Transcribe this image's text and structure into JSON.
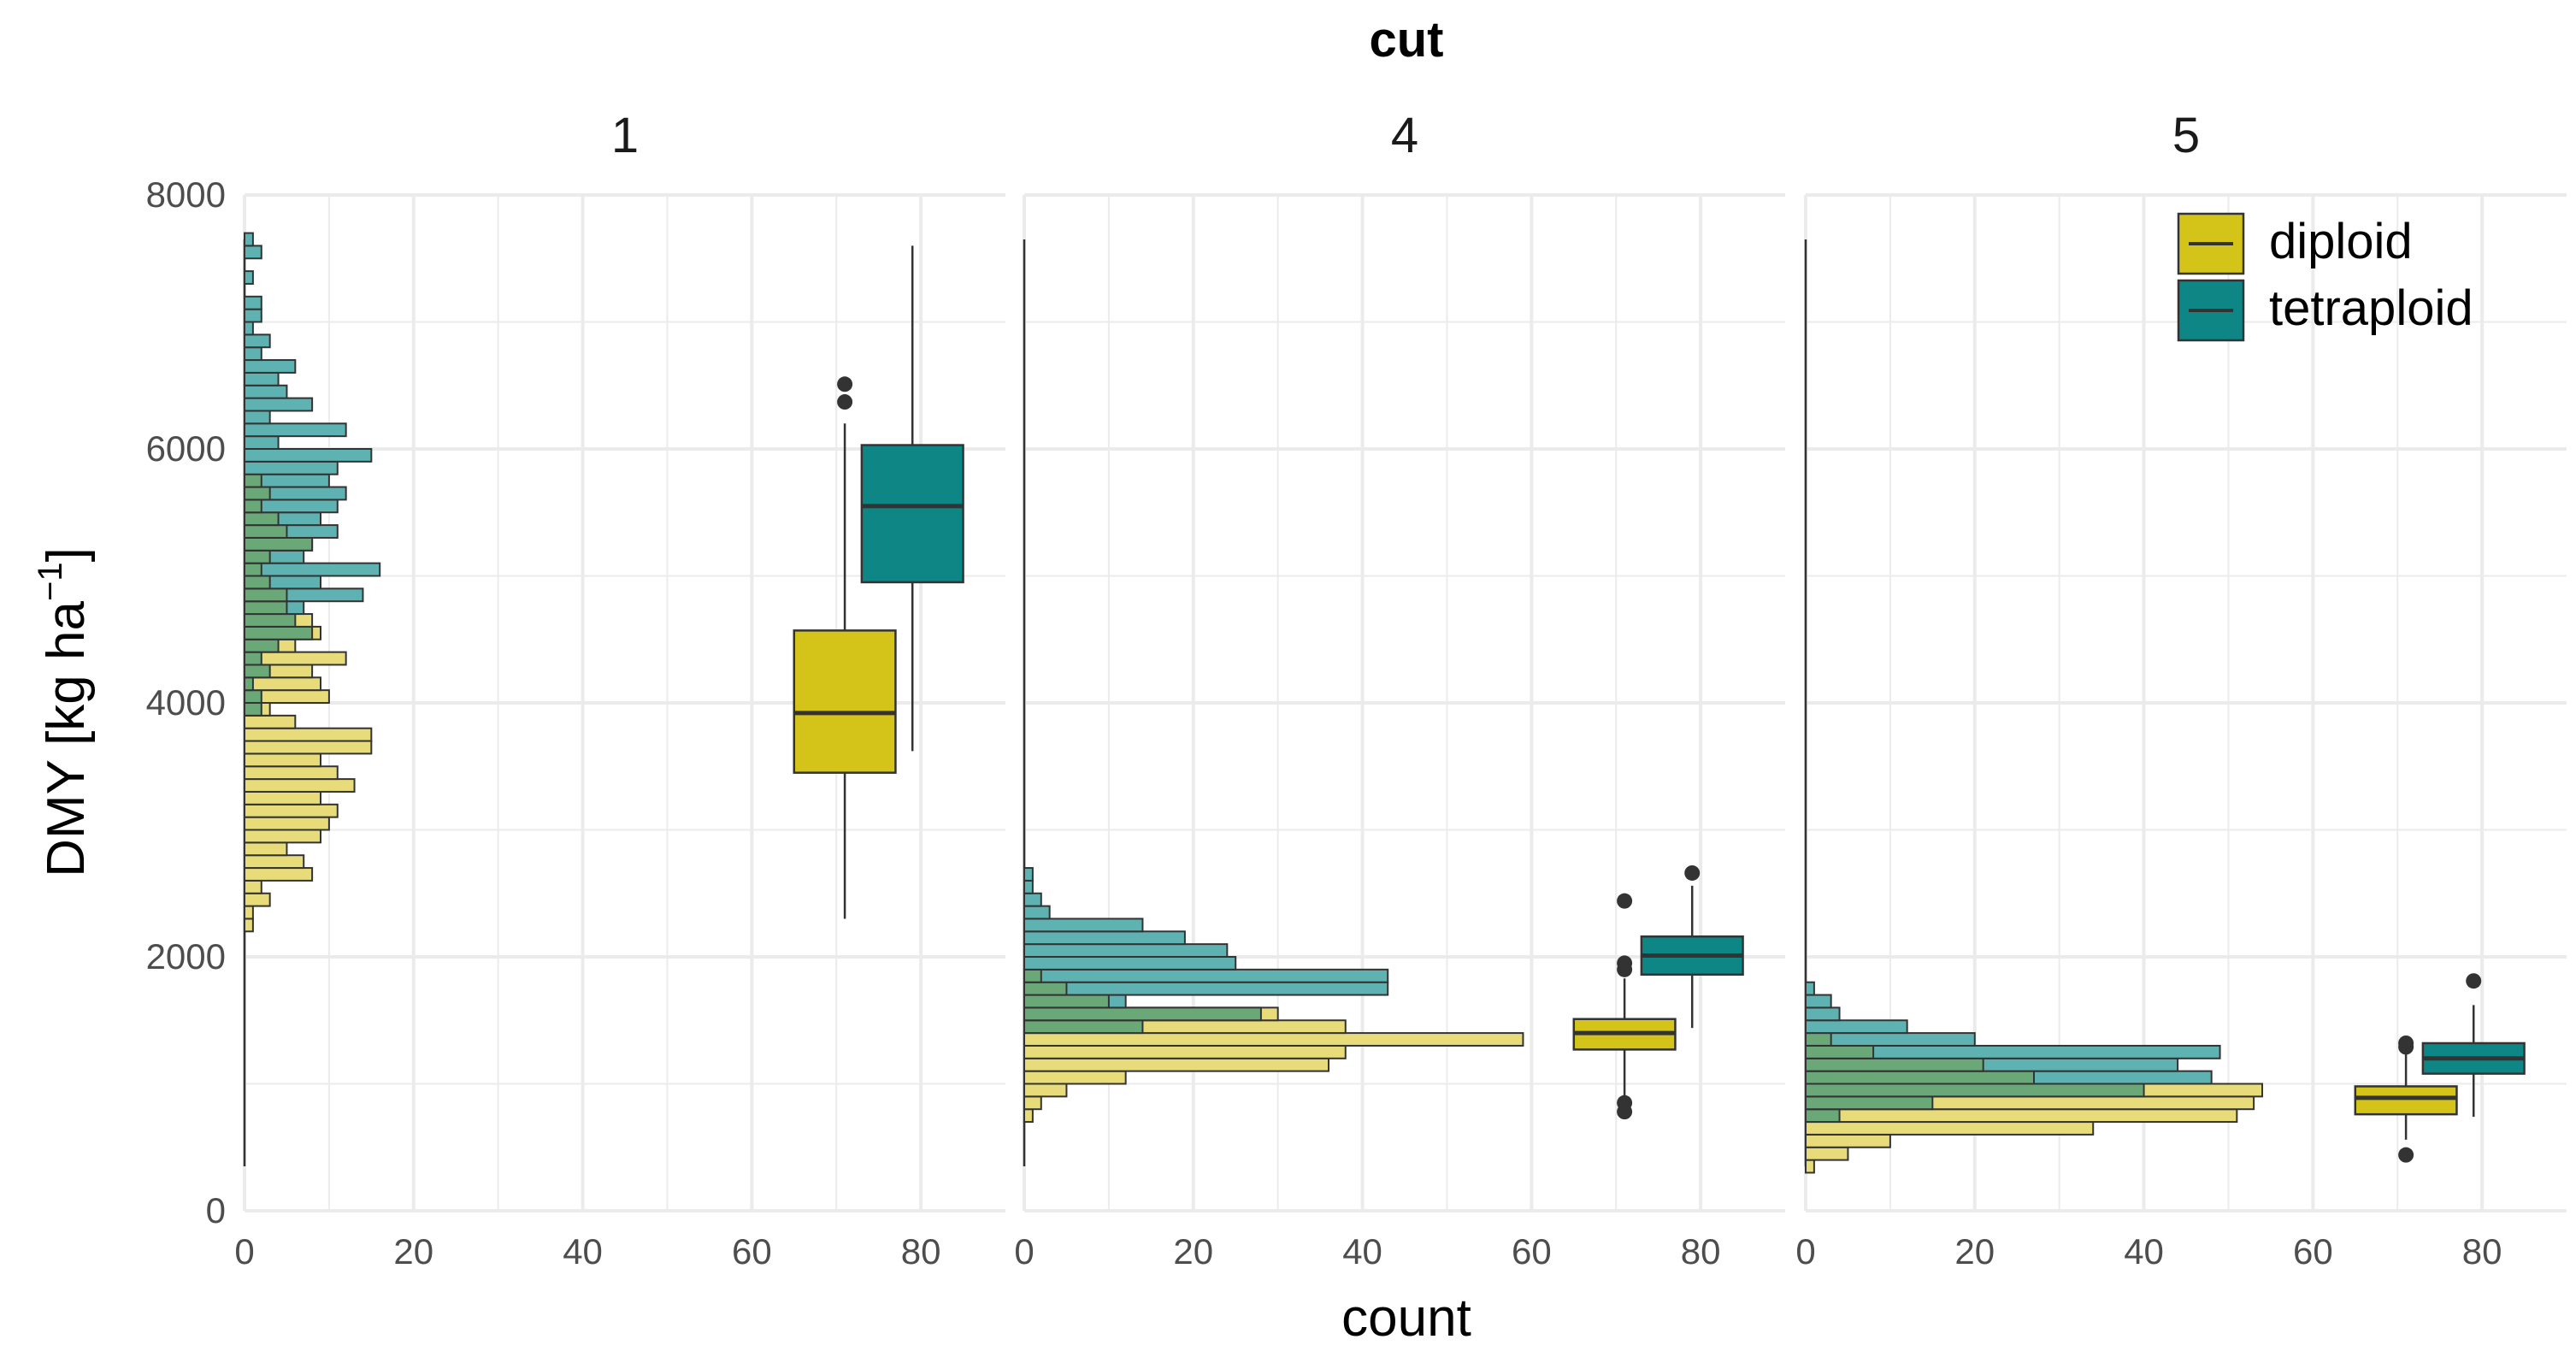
{
  "chart_data": {
    "type": "histogram-boxplot",
    "title": "cut",
    "xlabel": "count",
    "ylabel": "DMY [kg ha",
    "ylabel_superscript": "−1",
    "ylabel_suffix": "]",
    "xlim": [
      0,
      90
    ],
    "ylim": [
      0,
      8000
    ],
    "x_ticks": [
      0,
      20,
      40,
      60,
      80
    ],
    "y_ticks": [
      0,
      2000,
      4000,
      6000,
      8000
    ],
    "bin_width": 100,
    "legend": {
      "position": "top-right",
      "items": [
        {
          "name": "diploid",
          "color": "#D4C419"
        },
        {
          "name": "tetraploid",
          "color": "#0E8686"
        }
      ]
    },
    "colors": {
      "diploid_hist": "#E8DC7A",
      "tetraploid_hist": "#5FB2B2",
      "overlap_hist": "#6BA878",
      "diploid_box": "#D4C419",
      "tetraploid_box": "#0E8686",
      "grid": "#EBEBEB",
      "outline": "#333333"
    },
    "panels": [
      {
        "label": "1",
        "whisker_line": {
          "x": 0,
          "y0": 350,
          "y1": 7650
        },
        "diploid_hist": [
          [
            2200,
            1
          ],
          [
            2300,
            1
          ],
          [
            2400,
            3
          ],
          [
            2500,
            2
          ],
          [
            2600,
            8
          ],
          [
            2700,
            7
          ],
          [
            2800,
            5
          ],
          [
            2900,
            9
          ],
          [
            3000,
            10
          ],
          [
            3100,
            11
          ],
          [
            3200,
            9
          ],
          [
            3300,
            13
          ],
          [
            3400,
            11
          ],
          [
            3500,
            9
          ],
          [
            3600,
            15
          ],
          [
            3700,
            15
          ],
          [
            3800,
            6
          ],
          [
            3900,
            3
          ],
          [
            4000,
            10
          ],
          [
            4100,
            9
          ],
          [
            4200,
            8
          ],
          [
            4300,
            12
          ],
          [
            4400,
            6
          ],
          [
            4500,
            9
          ],
          [
            4600,
            8
          ],
          [
            4700,
            5
          ],
          [
            4800,
            5
          ],
          [
            4900,
            3
          ],
          [
            5000,
            2
          ],
          [
            5100,
            3
          ],
          [
            5200,
            8
          ],
          [
            5300,
            5
          ],
          [
            5400,
            4
          ],
          [
            5500,
            2
          ],
          [
            5600,
            3
          ],
          [
            5700,
            2
          ]
        ],
        "tetraploid_hist": [
          [
            3900,
            2
          ],
          [
            4000,
            2
          ],
          [
            4100,
            1
          ],
          [
            4200,
            3
          ],
          [
            4300,
            2
          ],
          [
            4400,
            4
          ],
          [
            4500,
            8
          ],
          [
            4600,
            6
          ],
          [
            4700,
            7
          ],
          [
            4800,
            14
          ],
          [
            4900,
            9
          ],
          [
            5000,
            16
          ],
          [
            5100,
            7
          ],
          [
            5200,
            8
          ],
          [
            5300,
            11
          ],
          [
            5400,
            9
          ],
          [
            5500,
            11
          ],
          [
            5600,
            12
          ],
          [
            5700,
            10
          ],
          [
            5800,
            11
          ],
          [
            5900,
            15
          ],
          [
            6000,
            4
          ],
          [
            6100,
            12
          ],
          [
            6200,
            3
          ],
          [
            6300,
            8
          ],
          [
            6400,
            5
          ],
          [
            6500,
            4
          ],
          [
            6600,
            6
          ],
          [
            6700,
            2
          ],
          [
            6800,
            3
          ],
          [
            6900,
            1
          ],
          [
            7000,
            2
          ],
          [
            7100,
            2
          ],
          [
            7300,
            1
          ],
          [
            7500,
            2
          ],
          [
            7600,
            1
          ]
        ],
        "boxes": [
          {
            "group": "diploid",
            "center": 71,
            "q1": 3450,
            "median": 3920,
            "q3": 4570,
            "whisker_low": 2300,
            "whisker_high": 6200,
            "outliers": [
              6370,
              6510
            ]
          },
          {
            "group": "tetraploid",
            "center": 79,
            "q1": 4950,
            "median": 5550,
            "q3": 6030,
            "whisker_low": 3620,
            "whisker_high": 7600,
            "outliers": []
          }
        ]
      },
      {
        "label": "4",
        "whisker_line": {
          "x": 0,
          "y0": 350,
          "y1": 7650
        },
        "diploid_hist": [
          [
            700,
            1
          ],
          [
            800,
            2
          ],
          [
            900,
            5
          ],
          [
            1000,
            12
          ],
          [
            1100,
            36
          ],
          [
            1200,
            38
          ],
          [
            1300,
            59
          ],
          [
            1400,
            38
          ],
          [
            1500,
            30
          ],
          [
            1600,
            10
          ],
          [
            1700,
            5
          ],
          [
            1800,
            2
          ]
        ],
        "tetraploid_hist": [
          [
            1400,
            14
          ],
          [
            1500,
            28
          ],
          [
            1600,
            12
          ],
          [
            1700,
            43
          ],
          [
            1800,
            43
          ],
          [
            1900,
            25
          ],
          [
            2000,
            24
          ],
          [
            2100,
            19
          ],
          [
            2200,
            14
          ],
          [
            2300,
            3
          ],
          [
            2400,
            2
          ],
          [
            2500,
            1
          ],
          [
            2600,
            1
          ]
        ],
        "boxes": [
          {
            "group": "diploid",
            "center": 71,
            "q1": 1270,
            "median": 1400,
            "q3": 1510,
            "whisker_low": 900,
            "whisker_high": 1830,
            "outliers": [
              780,
              850,
              1900,
              1950,
              2440
            ]
          },
          {
            "group": "tetraploid",
            "center": 79,
            "q1": 1860,
            "median": 2010,
            "q3": 2160,
            "whisker_low": 1440,
            "whisker_high": 2560,
            "outliers": [
              2660
            ]
          }
        ]
      },
      {
        "label": "5",
        "whisker_line": {
          "x": 0,
          "y0": 350,
          "y1": 7650
        },
        "diploid_hist": [
          [
            300,
            1
          ],
          [
            400,
            5
          ],
          [
            500,
            10
          ],
          [
            600,
            34
          ],
          [
            700,
            51
          ],
          [
            800,
            53
          ],
          [
            900,
            54
          ],
          [
            1000,
            27
          ],
          [
            1100,
            21
          ],
          [
            1200,
            8
          ],
          [
            1300,
            3
          ]
        ],
        "tetraploid_hist": [
          [
            700,
            4
          ],
          [
            800,
            15
          ],
          [
            900,
            40
          ],
          [
            1000,
            48
          ],
          [
            1100,
            44
          ],
          [
            1200,
            49
          ],
          [
            1300,
            20
          ],
          [
            1400,
            12
          ],
          [
            1500,
            4
          ],
          [
            1600,
            3
          ],
          [
            1700,
            1
          ]
        ],
        "boxes": [
          {
            "group": "diploid",
            "center": 71,
            "q1": 760,
            "median": 890,
            "q3": 980,
            "whisker_low": 560,
            "whisker_high": 1250,
            "outliers": [
              440,
              1290,
              1320
            ]
          },
          {
            "group": "tetraploid",
            "center": 79,
            "q1": 1080,
            "median": 1200,
            "q3": 1320,
            "whisker_low": 740,
            "whisker_high": 1620,
            "outliers": [
              1810
            ]
          }
        ]
      }
    ]
  }
}
